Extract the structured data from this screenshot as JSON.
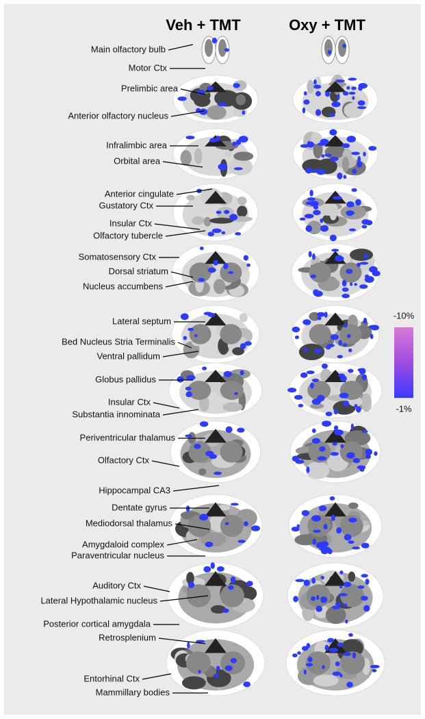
{
  "columns": [
    "Veh + TMT",
    "Oxy + TMT"
  ],
  "labels": [
    "Main olfactory bulb",
    "Motor Ctx",
    "Prelimbic area",
    "Anterior olfactory nucleus",
    "Infralimbic area",
    "Orbital area",
    "Anterior cingulate",
    "Gustatory Ctx",
    "Insular Ctx",
    "Olfactory tubercle",
    "Somatosensory Ctx",
    "Dorsal striatum",
    "Nucleus accumbens",
    "Lateral septum",
    "Bed Nucleus Stria Terminalis",
    "Ventral pallidum",
    "Globus pallidus",
    "Insular Ctx",
    "Substantia innominata",
    "Periventricular thalamus",
    "Olfactory Ctx",
    "Hippocampal CA3",
    "Dentate gyrus",
    "Mediodorsal thalamus",
    "Amygdaloid complex",
    "Paraventricular nucleus",
    "Auditory Ctx",
    "Lateral Hypothalamic nucleus",
    "Posterior cortical amygdala",
    "Retrosplenium",
    "Entorhinal Ctx",
    "Mammillary bodies"
  ],
  "colorbar": {
    "top": "-10%",
    "bottom": "-1%"
  }
}
